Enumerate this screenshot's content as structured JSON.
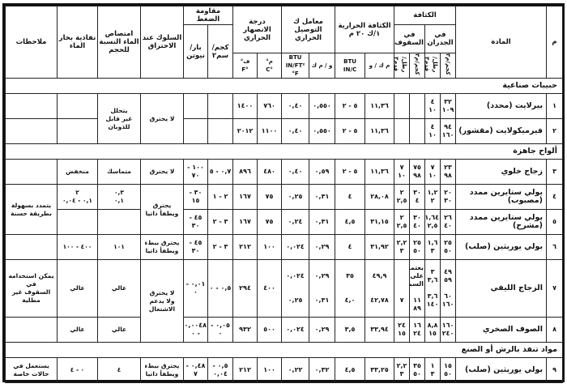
{
  "header": {
    "num": "م",
    "material": "المادة",
    "density": "الكثافة",
    "density_walls": "في الجدران",
    "density_roof": "في السقوف",
    "density_units": [
      "كجم/م٣",
      "رطل/قدم٣",
      "كجم/م٣",
      "رطل/قدم٣"
    ],
    "conductivity": "الكثافة الحرارية ١/ك ٢٠ م",
    "conductivity_units": [
      "م ك / و",
      "BTU IN/C"
    ],
    "transfer": "معامل ك التوصيل الحراري",
    "transfer_units": [
      "و / م ك",
      "BTU IN/FT² °F"
    ],
    "melting": "درجة الانصهار الحراري",
    "melting_units": [
      "م°",
      "ف°"
    ],
    "melting_units_latin": [
      "°C",
      "°F"
    ],
    "compression": "مقاومة الضغط",
    "compression_units": [
      "كجم/سم٢",
      "بار/نيوتن"
    ],
    "behavior": "السلوك عند الاحتراق",
    "absorption": "امتصاص الماء النسبة للحجم",
    "vapor": "نفاذية بخار الماء",
    "notes": "ملاحظات"
  },
  "rows": [
    {
      "type": "section",
      "label": "حبيبات صناعية"
    },
    {
      "type": "item",
      "num": "١",
      "name": "بيرلايت (محدد)",
      "cells": [
        "٣٢\n١٠٩",
        "٤\n١٠",
        "",
        "",
        "١١,٣٦",
        "٥ - ٢",
        "٠,٥٥٠",
        "٠,٤٠",
        "٧٦٠",
        "١٤٠٠",
        "",
        "",
        "لا يحترق",
        "يتحلل\nغير قابل للذوبان",
        "",
        ""
      ]
    },
    {
      "type": "item",
      "num": "٢",
      "name": "فيرميكولايت (مقشور)",
      "cells": [
        "٩٤\n١٦٠",
        "٤\n١٠",
        "",
        "",
        "١١,٣٦",
        "٥ - ٢",
        "٠,٥٥٠",
        "٠,٤٠",
        "١١٠٠",
        "٢٠١٢",
        "",
        "",
        "",
        "",
        "",
        ""
      ]
    },
    {
      "type": "section",
      "label": "ألواح جاهزة"
    },
    {
      "type": "item",
      "num": "٣",
      "name": "زجاج خلوي",
      "cells": [
        "٢٣\n٩٨",
        "٧\n١٠",
        "٧٥\n٩٨",
        "٧\n١٠",
        "١١,٣٦",
        "٥ - ٢",
        "٠,٥٩",
        "٠,٤٠",
        "٤٨٠",
        "٨٩٦",
        "٠,٧ - ٥",
        "١٠٠ - ٧٠",
        "لا يحترق",
        "متماسك",
        "منخفض",
        ""
      ]
    },
    {
      "type": "item",
      "num": "٤",
      "name": "بولي ستايرين ممدد (مصبوب)",
      "cells": [
        "٢٠\n٣٠",
        "١,٢\n٢",
        "٣٠\n٤",
        "٢\n٢,٥",
        "٢٨,٠٨",
        "٤",
        "٠,٣١",
        "٠,٢٥",
        "٧٥",
        "١٦٧",
        "٢ - ١",
        "٣٠ - ١٥",
        "يحترق\nويطفأ ذاتيا",
        "٠,٣\n٠,١",
        "٢\n٠,١ - ٠,٠٤",
        "يتمدد بسهولة\nبطريقة حسنة"
      ]
    },
    {
      "type": "item",
      "num": "٥",
      "name": "بولي ستايرين ممدد (مشرح)",
      "cells": [
        "٢٦\n٤٠",
        "١,٦٤\n٢,٥",
        "٣٠\n٤٠",
        "٢\n٢,٥",
        "٣١,١٥",
        "٤,٥",
        "٠,٣١",
        "٠,٢٤",
        "٧٥",
        "١٦٧",
        "٣ - ٢",
        "٤٥ - ٣٠",
        "",
        "",
        "",
        ""
      ]
    },
    {
      "type": "item",
      "num": "٦",
      "name": "بولي يوريثين (صلب)",
      "cells": [
        "٢٥\n٥٠",
        "١,٦\n٣",
        "٢٥\n٥٠",
        "٢,٢\n٣",
        "٣١,٩٢",
        "٤",
        "٠,٢٩",
        "٠,٠٢٤",
        "١٠٠",
        "٢١٢",
        "٣ - ٢",
        "٤٥ - ٣٠",
        "يحترق ببطء\nويطفأ ذاتيا",
        "١٠١",
        "٤٠٠ - ١٠٠",
        ""
      ]
    },
    {
      "type": "item",
      "num": "٧",
      "name": "الزجاج الليفي",
      "cells": [
        "٤٩\n٥٩\n\n٦٠\n١٦٠",
        "٣\n٣,٦\n\n٣,٦\n١٤٠",
        "يعتمد على\nالسمك\n\n١١\n٨٩",
        "\n\n\n٧",
        "٤٩,٩\n\n\n٤٢,٧٨",
        "٣٥\n\n\n٤,٠",
        "٠,٢٩\n\n\n٠,٣١",
        "٠,٠٢٤\n\n\n٠,٢٥",
        "٤٠٠",
        "٢٩٤",
        "٠,٥ - ٠",
        "٠,٠١ - ٠",
        "لا يحترق\nولا يدعم الاشتعال",
        "عالي",
        "عالي",
        "يمكن استخدامه\nفي\nالسقوف غير مطلية"
      ]
    },
    {
      "type": "item",
      "num": "٨",
      "name": "الصوف الصخري",
      "cells": [
        "١٦٠\n٢٤٠",
        "٨,٨\n١٥",
        "١٦\n٢٤",
        "٢٤\n١٥",
        "٣٣,٩٤",
        "٣,٥",
        "٠,٢٩",
        "٠,٠٢٤",
        "٥٠٠",
        "٩٣٢",
        "٠,٠٥ - ٠",
        "٠,٠٠٤٨ - ٠",
        "",
        "عالي",
        "عالي",
        ""
      ]
    },
    {
      "type": "section",
      "label": "مواد تنفذ بالرش أو الصنع"
    },
    {
      "type": "item",
      "num": "٩",
      "name": "بولي يوريثين (صلب)",
      "cells": [
        "١٥\n٥٠",
        "١\n٣",
        "٣٥\n٥٠",
        "٢,٢\n٣",
        "٣٣,٢٥",
        "٤,٥",
        "٠,٣٢",
        "٠,٢٢",
        "١٠٠",
        "٢١٢",
        "٠,٥ - ٠,٠٤",
        "٠,٤٨ - ٧",
        "يحترق ببطء\nويطفأ ذاتيا",
        "٤",
        "٠ - ٤",
        "يستعمل في\nحالات خاصة"
      ]
    }
  ]
}
